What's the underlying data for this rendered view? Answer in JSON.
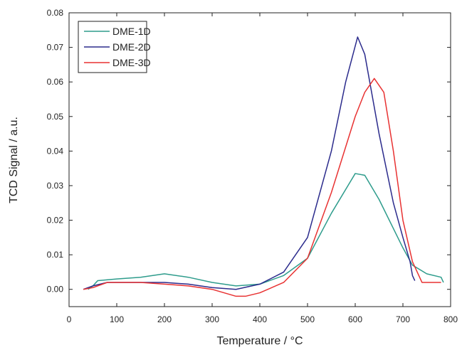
{
  "chart_data": {
    "type": "line",
    "xlabel": "Temperature / °C",
    "ylabel": "TCD Signal / a.u.",
    "xlim": [
      0,
      800
    ],
    "xticks": [
      0,
      100,
      200,
      300,
      400,
      500,
      600,
      700,
      800
    ],
    "ylim": [
      -0.005,
      0.08
    ],
    "yticks": [
      {
        "value": 0,
        "label": "0.00"
      },
      {
        "value": 0.01,
        "label": "0.01"
      },
      {
        "value": 0.02,
        "label": "0.02"
      },
      {
        "value": 0.03,
        "label": "0.03"
      },
      {
        "value": 0.04,
        "label": "0.04"
      },
      {
        "value": 0.05,
        "label": "0.05"
      },
      {
        "value": 0.06,
        "label": "0.06"
      },
      {
        "value": 0.07,
        "label": "0.07"
      },
      {
        "value": 0.08,
        "label": "0.08"
      }
    ],
    "legend": "upper left",
    "series": [
      {
        "name": "DME-1D",
        "color": "#2e9c8c",
        "x": [
          40,
          50,
          60,
          100,
          150,
          200,
          250,
          300,
          350,
          400,
          450,
          500,
          550,
          600,
          620,
          650,
          700,
          720,
          750,
          780,
          785
        ],
        "values": [
          0.0,
          0.001,
          0.0025,
          0.003,
          0.0035,
          0.0045,
          0.0035,
          0.002,
          0.001,
          0.0015,
          0.004,
          0.009,
          0.022,
          0.0335,
          0.033,
          0.026,
          0.012,
          0.007,
          0.0045,
          0.0035,
          0.002
        ]
      },
      {
        "name": "DME-2D",
        "color": "#2b2b8c",
        "x": [
          30,
          50,
          80,
          150,
          200,
          250,
          300,
          350,
          400,
          450,
          500,
          550,
          580,
          605,
          620,
          650,
          680,
          700,
          715,
          720,
          725
        ],
        "values": [
          0.0,
          0.001,
          0.002,
          0.002,
          0.002,
          0.0015,
          0.0005,
          0.0,
          0.0015,
          0.005,
          0.015,
          0.04,
          0.06,
          0.073,
          0.068,
          0.045,
          0.025,
          0.015,
          0.008,
          0.004,
          0.0025
        ]
      },
      {
        "name": "DME-3D",
        "color": "#e83232",
        "x": [
          30,
          50,
          80,
          150,
          200,
          250,
          300,
          350,
          370,
          400,
          450,
          500,
          550,
          600,
          620,
          640,
          660,
          680,
          700,
          720,
          740,
          780
        ],
        "values": [
          0.0,
          0.0005,
          0.002,
          0.002,
          0.0015,
          0.001,
          0.0,
          -0.002,
          -0.002,
          -0.001,
          0.002,
          0.009,
          0.028,
          0.05,
          0.057,
          0.061,
          0.057,
          0.04,
          0.02,
          0.008,
          0.002,
          0.002
        ]
      }
    ]
  }
}
